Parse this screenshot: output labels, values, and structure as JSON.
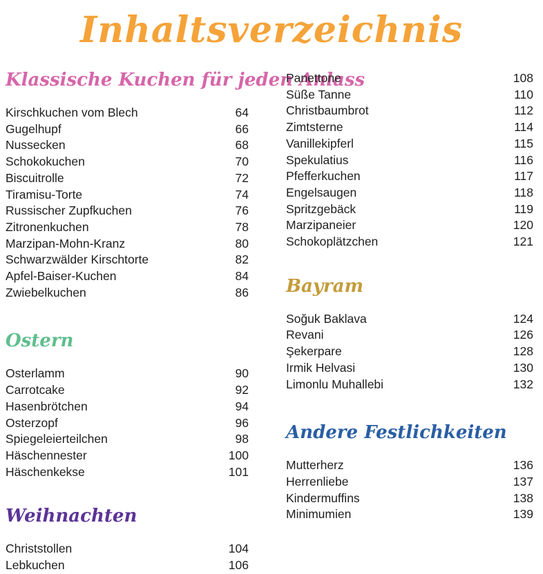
{
  "title": {
    "text": "Inhaltsverzeichnis",
    "color": "#F5A339"
  },
  "heading_colors": {
    "klassische_kuchen": "#D666A9",
    "ostern": "#5FBE8D",
    "weihnachten": "#5C3397",
    "bayram": "#C39C3B",
    "andere_festlichkeiten": "#2A5EA5"
  },
  "columns": {
    "left": {
      "sections": [
        {
          "heading": "Klassische Kuchen für jeden Anlass",
          "heading_color": "#D666A9",
          "entries": [
            {
              "label": "Kirschkuchen vom Blech",
              "page": "64"
            },
            {
              "label": "Gugelhupf",
              "page": "66"
            },
            {
              "label": "Nussecken",
              "page": "68"
            },
            {
              "label": "Schokokuchen",
              "page": "70"
            },
            {
              "label": "Biscuitrolle",
              "page": "72"
            },
            {
              "label": "Tiramisu-Torte",
              "page": "74"
            },
            {
              "label": "Russischer Zupfkuchen",
              "page": "76"
            },
            {
              "label": "Zitronenkuchen",
              "page": "78"
            },
            {
              "label": "Marzipan-Mohn-Kranz",
              "page": "80"
            },
            {
              "label": "Schwarzwälder Kirschtorte",
              "page": "82"
            },
            {
              "label": "Apfel-Baiser-Kuchen",
              "page": "84"
            },
            {
              "label": "Zwiebelkuchen",
              "page": "86"
            }
          ]
        },
        {
          "heading": "Ostern",
          "heading_color": "#5FBE8D",
          "entries": [
            {
              "label": "Osterlamm",
              "page": "90"
            },
            {
              "label": "Carrotcake",
              "page": "92"
            },
            {
              "label": "Hasenbrötchen",
              "page": "94"
            },
            {
              "label": "Osterzopf",
              "page": "96"
            },
            {
              "label": "Spiegeleierteilchen",
              "page": "98"
            },
            {
              "label": "Häschennester",
              "page": "100"
            },
            {
              "label": "Häschenkekse",
              "page": "101"
            }
          ]
        },
        {
          "heading": "Weihnachten",
          "heading_color": "#5C3397",
          "entries": [
            {
              "label": "Christstollen",
              "page": "104"
            },
            {
              "label": "Lebkuchen",
              "page": "106"
            }
          ]
        }
      ]
    },
    "right": {
      "sections": [
        {
          "heading": "",
          "note": "continuation of Weihnachten section",
          "entries": [
            {
              "label": "Panettone",
              "page": "108"
            },
            {
              "label": "Süße Tanne",
              "page": "110"
            },
            {
              "label": "Christbaumbrot",
              "page": "112"
            },
            {
              "label": "Zimtsterne",
              "page": "114"
            },
            {
              "label": "Vanillekipferl",
              "page": "115"
            },
            {
              "label": "Spekulatius",
              "page": "116"
            },
            {
              "label": "Pfefferkuchen",
              "page": "117"
            },
            {
              "label": "Engelsaugen",
              "page": "118"
            },
            {
              "label": "Spritzgebäck",
              "page": "119"
            },
            {
              "label": "Marzipaneier",
              "page": "120"
            },
            {
              "label": "Schokoplätzchen",
              "page": "121"
            }
          ]
        },
        {
          "heading": "Bayram",
          "heading_color": "#C39C3B",
          "entries": [
            {
              "label": "Soğuk Baklava",
              "page": "124"
            },
            {
              "label": "Revani",
              "page": "126"
            },
            {
              "label": "Şekerpare",
              "page": "128"
            },
            {
              "label": "Irmik Helvasi",
              "page": "130"
            },
            {
              "label": "Limonlu Muhallebi",
              "page": "132"
            }
          ]
        },
        {
          "heading": "Andere Festlichkeiten",
          "heading_color": "#2A5EA5",
          "entries": [
            {
              "label": "Mutterherz",
              "page": "136"
            },
            {
              "label": "Herrenliebe",
              "page": "137"
            },
            {
              "label": "Kindermuffins",
              "page": "138"
            },
            {
              "label": "Minimumien",
              "page": "139"
            }
          ]
        }
      ]
    }
  }
}
